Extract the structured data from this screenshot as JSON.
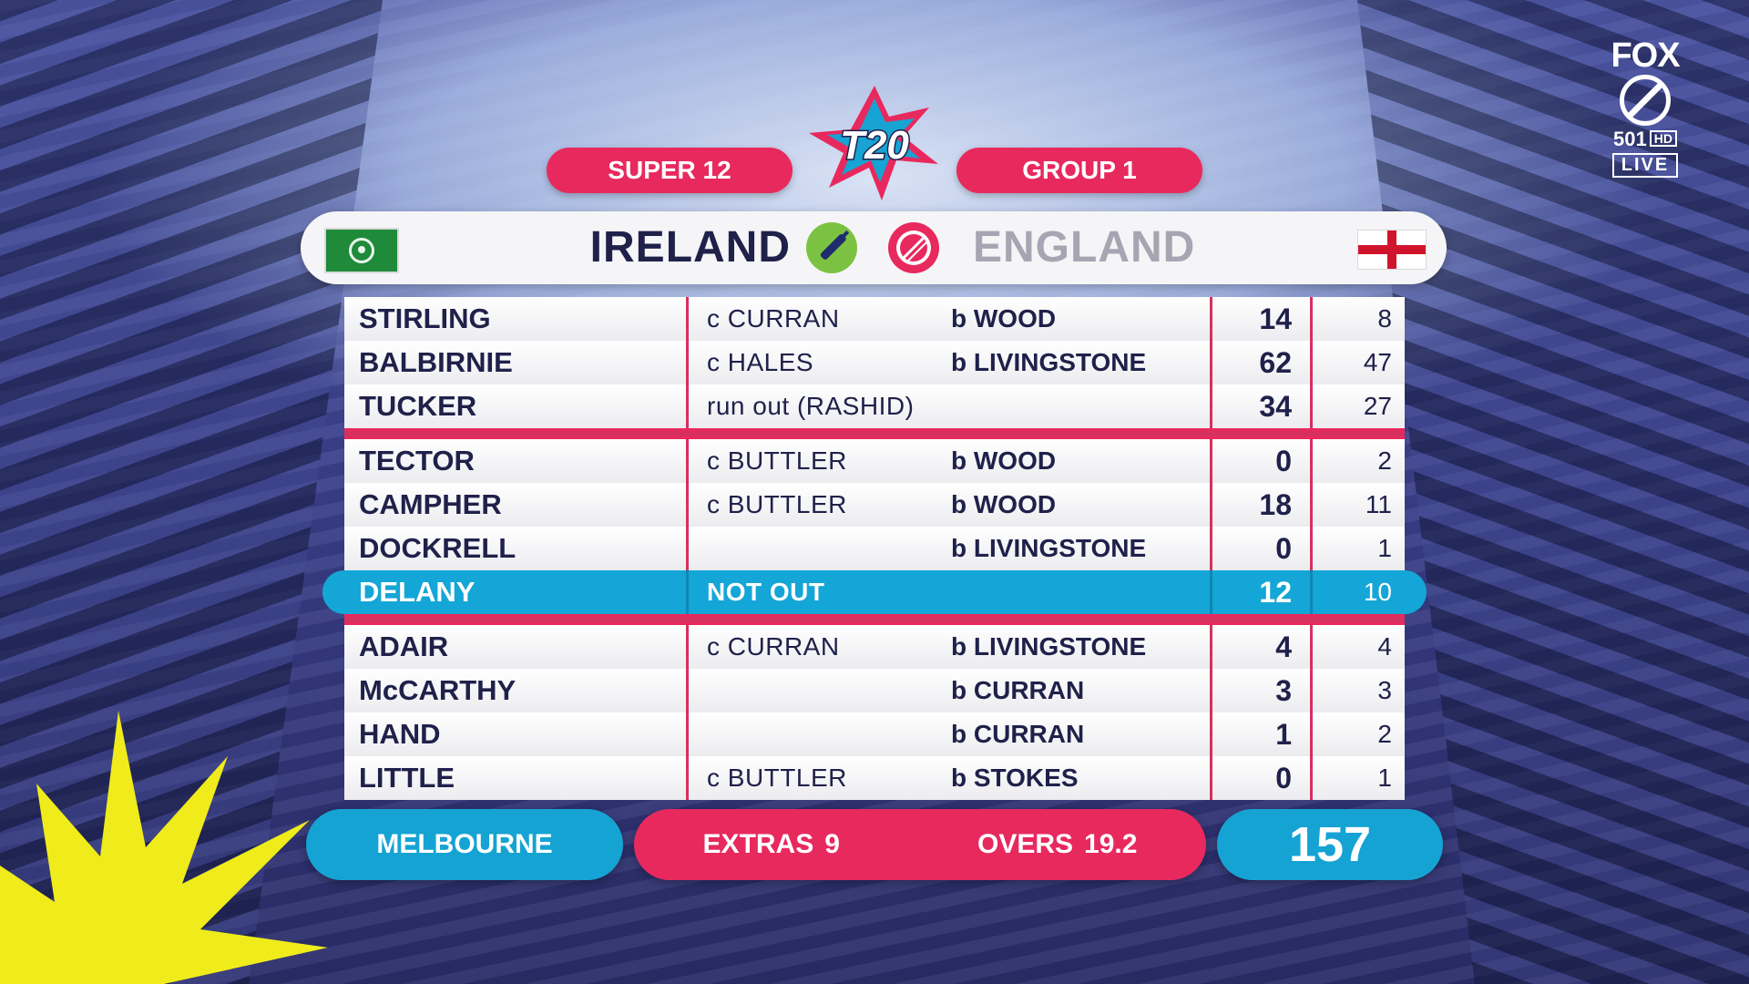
{
  "broadcaster": {
    "logo_text": "FOX",
    "channel": "501",
    "hd_label": "HD",
    "live_label": "LIVE"
  },
  "tournament": {
    "logo_text": "T20",
    "stage": "SUPER 12",
    "group": "GROUP 1"
  },
  "match": {
    "batting_team": "IRELAND",
    "bowling_team": "ENGLAND"
  },
  "batting_rows": [
    {
      "batter": "STIRLING",
      "fielder": "c CURRAN",
      "bowler": "b WOOD",
      "runs": "14",
      "balls": "8"
    },
    {
      "batter": "BALBIRNIE",
      "fielder": "c HALES",
      "bowler": "b LIVINGSTONE",
      "runs": "62",
      "balls": "47"
    },
    {
      "batter": "TUCKER",
      "fielder": "run out (RASHID)",
      "bowler": "",
      "runs": "34",
      "balls": "27"
    },
    {
      "batter": "TECTOR",
      "fielder": "c BUTTLER",
      "bowler": "b WOOD",
      "runs": "0",
      "balls": "2"
    },
    {
      "batter": "CAMPHER",
      "fielder": "c BUTTLER",
      "bowler": "b WOOD",
      "runs": "18",
      "balls": "11"
    },
    {
      "batter": "DOCKRELL",
      "fielder": "",
      "bowler": "b LIVINGSTONE",
      "runs": "0",
      "balls": "1"
    },
    {
      "batter": "DELANY",
      "fielder": "NOT OUT",
      "bowler": "",
      "runs": "12",
      "balls": "10"
    },
    {
      "batter": "ADAIR",
      "fielder": "c CURRAN",
      "bowler": "b LIVINGSTONE",
      "runs": "4",
      "balls": "4"
    },
    {
      "batter": "McCARTHY",
      "fielder": "",
      "bowler": "b CURRAN",
      "runs": "3",
      "balls": "3"
    },
    {
      "batter": "HAND",
      "fielder": "",
      "bowler": "b CURRAN",
      "runs": "1",
      "balls": "2"
    },
    {
      "batter": "LITTLE",
      "fielder": "c BUTTLER",
      "bowler": "b STOKES",
      "runs": "0",
      "balls": "1"
    }
  ],
  "summary": {
    "venue": "MELBOURNE",
    "extras_label": "EXTRAS",
    "extras_value": "9",
    "overs_label": "OVERS",
    "overs_value": "19.2",
    "total": "157"
  },
  "colors": {
    "pink_accent": "#e8295e",
    "blue_accent": "#15a3d4",
    "navy_text": "#20214a"
  },
  "icons": [
    "t20-logo-icon",
    "ireland-flag-icon",
    "bat-icon",
    "ball-icon",
    "england-flag-icon",
    "fox-cricket-ball-icon"
  ]
}
